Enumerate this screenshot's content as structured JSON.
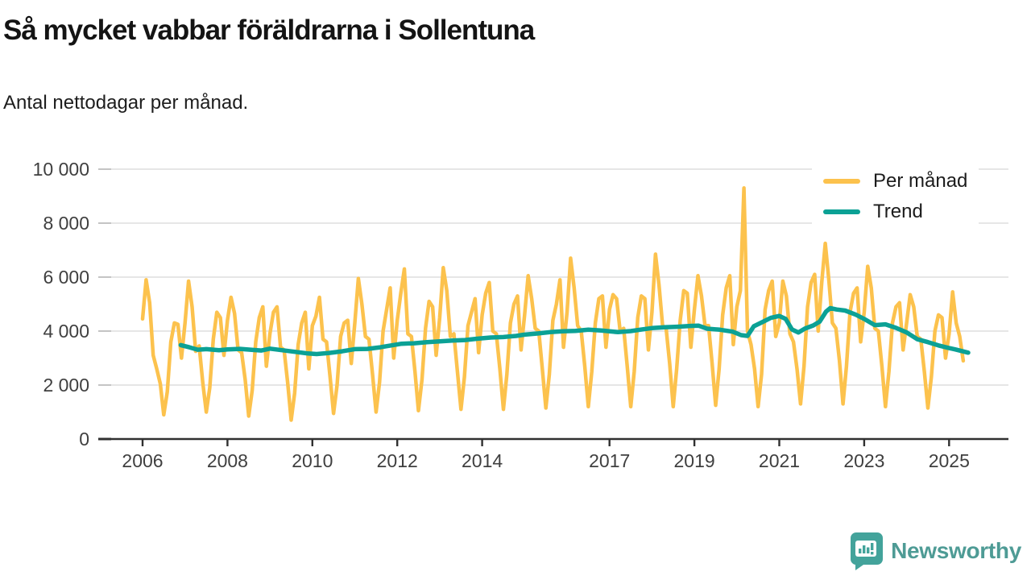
{
  "header": {
    "title": "Så mycket vabbar föräldrarna i Sollentuna",
    "subtitle": "Antal nettodagar per månad."
  },
  "legend": {
    "items": [
      {
        "label": "Per månad",
        "color": "#FCC24D"
      },
      {
        "label": "Trend",
        "color": "#0BA195"
      }
    ]
  },
  "branding": {
    "name": "Newsworthy",
    "mark_color": "#43A39B",
    "text_color": "#4E9B95"
  },
  "colors": {
    "background": "#ffffff",
    "grid": "#d8d8d8",
    "axis": "#303030",
    "tick_label": "#3f3f3f",
    "y_tick_mark": "#c4c4c4",
    "monthly_line": "#FCC24D",
    "trend_line": "#0BA195"
  },
  "chart_data": {
    "type": "line",
    "title": "Så mycket vabbar föräldrarna i Sollentuna",
    "subtitle": "Antal nettodagar per månad.",
    "xlabel": "",
    "ylabel": "",
    "grid": "horizontal",
    "legend_position": "top-right",
    "ylim": [
      0,
      10000
    ],
    "xlim": [
      2005.0,
      2026.4
    ],
    "y_ticks": [
      0,
      2000,
      4000,
      6000,
      8000,
      10000
    ],
    "y_tick_labels": [
      "0",
      "2 000",
      "4 000",
      "6 000",
      "8 000",
      "10 000"
    ],
    "x_ticks": [
      2006,
      2008,
      2010,
      2012,
      2014,
      2017,
      2019,
      2021,
      2023,
      2025
    ],
    "series": [
      {
        "name": "Per månad",
        "color": "#FCC24D",
        "stroke_width": 4.5,
        "start_year": 2006,
        "start_month": 1,
        "values": [
          4450,
          5900,
          5050,
          3100,
          2600,
          2050,
          900,
          1750,
          3600,
          4300,
          4250,
          3000,
          4300,
          5850,
          4900,
          3250,
          3450,
          2100,
          1000,
          1900,
          3700,
          4700,
          4500,
          3100,
          4400,
          5250,
          4650,
          3300,
          3200,
          2200,
          850,
          1800,
          3600,
          4500,
          4900,
          2700,
          3900,
          4700,
          4900,
          3400,
          3300,
          2100,
          700,
          1700,
          3500,
          4300,
          4700,
          2600,
          4200,
          4550,
          5250,
          3700,
          3600,
          2300,
          950,
          2000,
          3800,
          4300,
          4400,
          2800,
          4300,
          5950,
          5000,
          3800,
          3700,
          2400,
          1000,
          2100,
          4000,
          4800,
          5600,
          3000,
          4400,
          5400,
          6300,
          3900,
          3800,
          2500,
          1050,
          2200,
          4100,
          5100,
          4900,
          3100,
          4500,
          6350,
          5500,
          3800,
          3900,
          2500,
          1100,
          2300,
          4200,
          4700,
          5200,
          3200,
          4600,
          5400,
          5800,
          4000,
          3900,
          2600,
          1100,
          2400,
          4300,
          5000,
          5300,
          3300,
          4600,
          6050,
          5200,
          4100,
          4000,
          2600,
          1150,
          2400,
          4400,
          5000,
          5900,
          3400,
          4700,
          6700,
          5600,
          4200,
          4000,
          2700,
          1200,
          2500,
          4300,
          5200,
          5300,
          3400,
          4800,
          5350,
          5200,
          4000,
          4100,
          2700,
          1200,
          2500,
          4500,
          5300,
          5200,
          3300,
          4700,
          6850,
          5700,
          4200,
          4100,
          2800,
          1200,
          2600,
          4400,
          5500,
          5400,
          3400,
          4800,
          6050,
          5300,
          4200,
          4200,
          2800,
          1250,
          2600,
          4600,
          5600,
          6050,
          3500,
          4900,
          5500,
          9300,
          4000,
          3500,
          2600,
          1200,
          2400,
          4800,
          5500,
          5850,
          3800,
          4300,
          5850,
          5300,
          3900,
          3600,
          2600,
          1300,
          2700,
          4900,
          5800,
          6100,
          4000,
          5800,
          7250,
          5900,
          4300,
          4100,
          2900,
          1300,
          2700,
          4700,
          5400,
          5600,
          3600,
          4700,
          6400,
          5600,
          4100,
          4000,
          2700,
          1200,
          2500,
          4300,
          4900,
          5050,
          3300,
          4300,
          5350,
          4900,
          3800,
          3700,
          2500,
          1150,
          2300,
          4000,
          4600,
          4500,
          3000,
          3900,
          5450,
          4300,
          3800,
          2900
        ]
      },
      {
        "name": "Trend",
        "color": "#0BA195",
        "stroke_width": 5.5,
        "points": [
          [
            2006.9,
            3480
          ],
          [
            2007.1,
            3400
          ],
          [
            2007.3,
            3310
          ],
          [
            2007.5,
            3330
          ],
          [
            2007.8,
            3290
          ],
          [
            2008.0,
            3320
          ],
          [
            2008.3,
            3340
          ],
          [
            2008.6,
            3300
          ],
          [
            2008.8,
            3280
          ],
          [
            2009.0,
            3350
          ],
          [
            2009.3,
            3290
          ],
          [
            2009.6,
            3230
          ],
          [
            2009.9,
            3170
          ],
          [
            2010.1,
            3150
          ],
          [
            2010.4,
            3190
          ],
          [
            2010.7,
            3250
          ],
          [
            2011.0,
            3330
          ],
          [
            2011.3,
            3340
          ],
          [
            2011.6,
            3400
          ],
          [
            2011.9,
            3480
          ],
          [
            2012.1,
            3530
          ],
          [
            2012.4,
            3550
          ],
          [
            2012.7,
            3590
          ],
          [
            2013.0,
            3620
          ],
          [
            2013.3,
            3650
          ],
          [
            2013.6,
            3670
          ],
          [
            2013.9,
            3720
          ],
          [
            2014.2,
            3760
          ],
          [
            2014.5,
            3780
          ],
          [
            2014.8,
            3820
          ],
          [
            2015.0,
            3870
          ],
          [
            2015.3,
            3910
          ],
          [
            2015.6,
            3960
          ],
          [
            2015.9,
            3990
          ],
          [
            2016.2,
            4010
          ],
          [
            2016.5,
            4050
          ],
          [
            2016.8,
            4020
          ],
          [
            2017.0,
            3990
          ],
          [
            2017.2,
            3960
          ],
          [
            2017.5,
            4000
          ],
          [
            2017.8,
            4070
          ],
          [
            2018.0,
            4110
          ],
          [
            2018.3,
            4140
          ],
          [
            2018.6,
            4160
          ],
          [
            2018.9,
            4190
          ],
          [
            2019.1,
            4200
          ],
          [
            2019.3,
            4090
          ],
          [
            2019.6,
            4050
          ],
          [
            2019.9,
            3980
          ],
          [
            2020.1,
            3850
          ],
          [
            2020.25,
            3820
          ],
          [
            2020.4,
            4180
          ],
          [
            2020.6,
            4330
          ],
          [
            2020.8,
            4490
          ],
          [
            2021.0,
            4560
          ],
          [
            2021.15,
            4450
          ],
          [
            2021.3,
            4060
          ],
          [
            2021.45,
            3950
          ],
          [
            2021.6,
            4090
          ],
          [
            2021.8,
            4210
          ],
          [
            2021.95,
            4350
          ],
          [
            2022.1,
            4720
          ],
          [
            2022.2,
            4850
          ],
          [
            2022.35,
            4800
          ],
          [
            2022.55,
            4760
          ],
          [
            2022.8,
            4610
          ],
          [
            2023.0,
            4450
          ],
          [
            2023.25,
            4220
          ],
          [
            2023.5,
            4250
          ],
          [
            2023.75,
            4120
          ],
          [
            2024.0,
            3950
          ],
          [
            2024.25,
            3700
          ],
          [
            2024.5,
            3590
          ],
          [
            2024.75,
            3470
          ],
          [
            2025.0,
            3370
          ],
          [
            2025.15,
            3320
          ],
          [
            2025.3,
            3260
          ],
          [
            2025.45,
            3200
          ]
        ]
      }
    ]
  }
}
